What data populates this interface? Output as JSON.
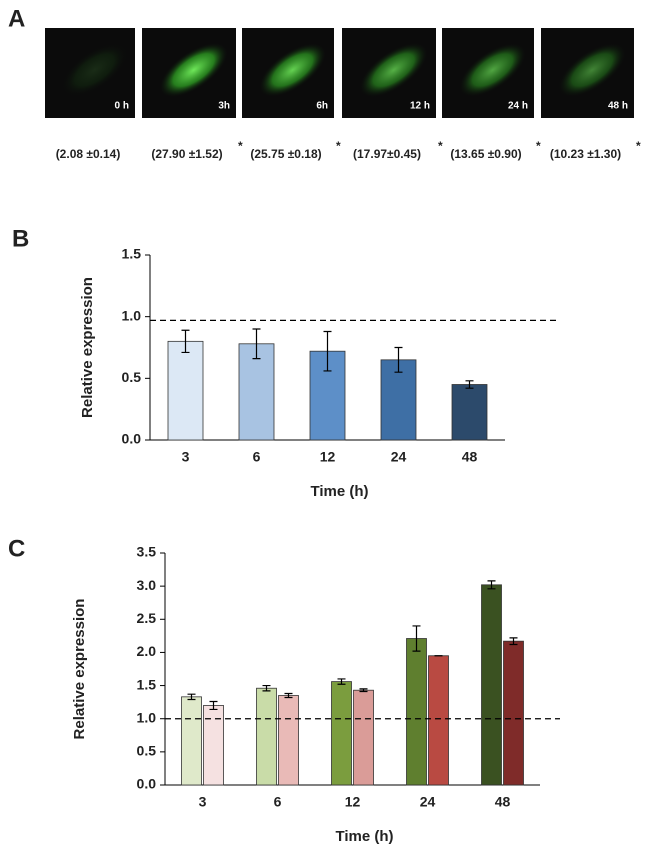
{
  "panel_a": {
    "panel_label": "A",
    "images": [
      {
        "label": "0 h",
        "value_text": "(2.08 ±0.14)"
      },
      {
        "label": "3h",
        "value_text": "(27.90 ±1.52)",
        "significance": "*"
      },
      {
        "label": "6h",
        "value_text": "(25.75 ±0.18)",
        "significance": "*"
      },
      {
        "label": "12 h",
        "value_text": "(17.97±0.45)",
        "significance": "*"
      },
      {
        "label": "24 h",
        "value_text": "(13.65 ±0.90)",
        "significance": "*"
      },
      {
        "label": "48 h",
        "value_text": "(10.23 ±1.30)",
        "significance": "*"
      }
    ]
  },
  "chart_data": [
    {
      "type": "bar",
      "panel_label": "B",
      "x_label": "Time (h)",
      "y_label": "Relative expression",
      "categories": [
        "3",
        "6",
        "12",
        "24",
        "48"
      ],
      "series": [
        {
          "values": [
            0.8,
            0.78,
            0.72,
            0.65,
            0.45
          ],
          "errors": [
            0.09,
            0.12,
            0.16,
            0.1,
            0.03
          ],
          "colors": [
            "#dce8f5",
            "#a8c3e2",
            "#5d8fc8",
            "#3e6fa5",
            "#2c4a6b"
          ]
        }
      ],
      "reference_line": 0.97,
      "ylim": [
        0,
        1.5
      ],
      "yticks": [
        {
          "value": 0,
          "label": "0.0"
        },
        {
          "value": 0.5,
          "label": "0.5"
        },
        {
          "value": 1,
          "label": "1.0"
        },
        {
          "value": 1.5,
          "label": "1.5"
        }
      ]
    },
    {
      "type": "bar",
      "panel_label": "C",
      "x_label": "Time (h)",
      "y_label": "Relative expression",
      "categories": [
        "3",
        "6",
        "12",
        "24",
        "48"
      ],
      "series": [
        {
          "values": [
            1.33,
            1.46,
            1.56,
            2.21,
            3.02
          ],
          "errors": [
            0.04,
            0.04,
            0.04,
            0.19,
            0.06
          ],
          "colors": [
            "#dfe9ca",
            "#c9dca8",
            "#7b9d3e",
            "#5f7f2f",
            "#3a5121"
          ]
        },
        {
          "values": [
            1.2,
            1.35,
            1.43,
            1.95,
            2.17
          ],
          "errors": [
            0.06,
            0.03,
            0.02,
            0,
            0.05
          ],
          "colors": [
            "#f5e1e1",
            "#e9bab7",
            "#da9c98",
            "#b94a42",
            "#7f2b29"
          ]
        }
      ],
      "reference_line": 1.0,
      "ylim": [
        0,
        3.5
      ],
      "yticks": [
        {
          "value": 0,
          "label": "0.0"
        },
        {
          "value": 0.5,
          "label": "0.5"
        },
        {
          "value": 1,
          "label": "1.0"
        },
        {
          "value": 1.5,
          "label": "1.5"
        },
        {
          "value": 2,
          "label": "2.0"
        },
        {
          "value": 2.5,
          "label": "2.5"
        },
        {
          "value": 3,
          "label": "3.0"
        },
        {
          "value": 3.5,
          "label": "3.5"
        }
      ]
    }
  ]
}
